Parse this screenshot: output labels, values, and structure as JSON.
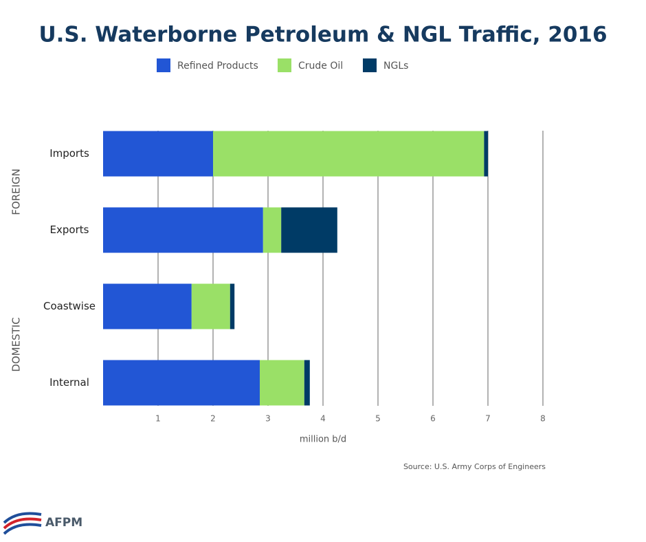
{
  "chart_data": {
    "type": "stacked_barh",
    "title": "U.S. Waterborne Petroleum & NGL Traffic, 2016",
    "categories": [
      "Imports",
      "Exports",
      "Coastwise",
      "Internal"
    ],
    "group_labels": [
      "FOREIGN",
      "DOMESTIC"
    ],
    "series": [
      {
        "name": "Refined Products",
        "color": "#2256d5",
        "values": [
          2.0,
          2.91,
          1.61,
          2.85
        ]
      },
      {
        "name": "Crude Oil",
        "color": "#9ae067",
        "values": [
          4.93,
          0.33,
          0.7,
          0.81
        ]
      },
      {
        "name": "NGLs",
        "color": "#003b66",
        "values": [
          0.07,
          1.02,
          0.08,
          0.1
        ]
      }
    ],
    "xlim": [
      0,
      8
    ],
    "xticks": [
      1,
      2,
      3,
      4,
      5,
      6,
      7,
      8
    ],
    "xlabel": "million b/d",
    "grid": true,
    "source": "Source: U.S. Army Corps of Engineers"
  },
  "footer": {
    "logo": "AFPM"
  }
}
